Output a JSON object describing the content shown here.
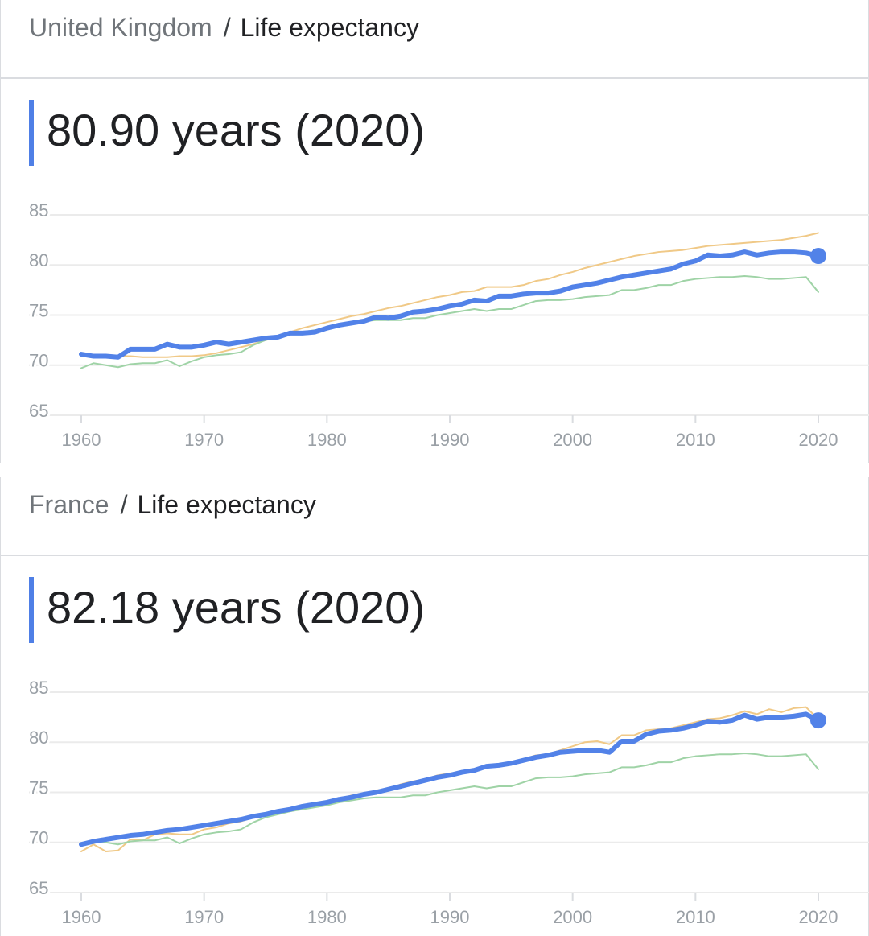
{
  "chart_data": [
    {
      "type": "line",
      "country": "United Kingdom",
      "separator": "/",
      "metric": "Life expectancy",
      "headline": "80.90 years (2020)",
      "x": [
        1960,
        1961,
        1962,
        1963,
        1964,
        1965,
        1966,
        1967,
        1968,
        1969,
        1970,
        1971,
        1972,
        1973,
        1974,
        1975,
        1976,
        1977,
        1978,
        1979,
        1980,
        1981,
        1982,
        1983,
        1984,
        1985,
        1986,
        1987,
        1988,
        1989,
        1990,
        1991,
        1992,
        1993,
        1994,
        1995,
        1996,
        1997,
        1998,
        1999,
        2000,
        2001,
        2002,
        2003,
        2004,
        2005,
        2006,
        2007,
        2008,
        2009,
        2010,
        2011,
        2012,
        2013,
        2014,
        2015,
        2016,
        2017,
        2018,
        2019,
        2020
      ],
      "xlim": [
        1960,
        2020
      ],
      "xticks": [
        1960,
        1970,
        1980,
        1990,
        2000,
        2010,
        2020
      ],
      "ylim": [
        65,
        85
      ],
      "yticks": [
        65,
        70,
        75,
        80,
        85
      ],
      "grid": true,
      "series": [
        {
          "color": "#f0c987",
          "values": [
            70.9,
            70.9,
            70.9,
            70.9,
            70.9,
            70.8,
            70.8,
            70.8,
            70.9,
            70.9,
            71.0,
            71.2,
            71.5,
            71.8,
            72.1,
            72.5,
            72.9,
            73.3,
            73.7,
            74.0,
            74.3,
            74.6,
            74.9,
            75.1,
            75.4,
            75.7,
            75.9,
            76.2,
            76.5,
            76.8,
            77.0,
            77.3,
            77.4,
            77.8,
            77.8,
            77.8,
            78.0,
            78.4,
            78.6,
            79.0,
            79.3,
            79.7,
            80.0,
            80.3,
            80.6,
            80.9,
            81.1,
            81.3,
            81.4,
            81.5,
            81.7,
            81.9,
            82.0,
            82.1,
            82.2,
            82.3,
            82.4,
            82.5,
            82.7,
            82.9,
            83.2
          ]
        },
        {
          "color": "#9fd3a6",
          "values": [
            69.7,
            70.2,
            70.0,
            69.8,
            70.1,
            70.2,
            70.2,
            70.5,
            69.9,
            70.4,
            70.8,
            71.0,
            71.1,
            71.3,
            72.0,
            72.5,
            72.8,
            73.1,
            73.3,
            73.5,
            73.7,
            74.0,
            74.2,
            74.4,
            74.5,
            74.5,
            74.5,
            74.7,
            74.7,
            75.0,
            75.2,
            75.4,
            75.6,
            75.4,
            75.6,
            75.6,
            76.0,
            76.4,
            76.5,
            76.5,
            76.6,
            76.8,
            76.9,
            77.0,
            77.5,
            77.5,
            77.7,
            78.0,
            78.0,
            78.4,
            78.6,
            78.7,
            78.8,
            78.8,
            78.9,
            78.8,
            78.6,
            78.6,
            78.7,
            78.8,
            77.3
          ]
        },
        {
          "color": "#5282e8",
          "values": [
            71.1,
            70.9,
            70.9,
            70.8,
            71.6,
            71.6,
            71.6,
            72.1,
            71.8,
            71.8,
            72.0,
            72.3,
            72.1,
            72.3,
            72.5,
            72.7,
            72.8,
            73.2,
            73.2,
            73.3,
            73.7,
            74.0,
            74.2,
            74.4,
            74.8,
            74.7,
            74.9,
            75.3,
            75.4,
            75.6,
            75.9,
            76.1,
            76.5,
            76.4,
            76.9,
            76.9,
            77.1,
            77.2,
            77.2,
            77.4,
            77.8,
            78.0,
            78.2,
            78.5,
            78.8,
            79.0,
            79.2,
            79.4,
            79.6,
            80.1,
            80.4,
            81.0,
            80.9,
            81.0,
            81.3,
            81.0,
            81.2,
            81.3,
            81.3,
            81.2,
            80.9
          ]
        }
      ]
    },
    {
      "type": "line",
      "country": "France",
      "separator": "/",
      "metric": "Life expectancy",
      "headline": "82.18 years (2020)",
      "x": [
        1960,
        1961,
        1962,
        1963,
        1964,
        1965,
        1966,
        1967,
        1968,
        1969,
        1970,
        1971,
        1972,
        1973,
        1974,
        1975,
        1976,
        1977,
        1978,
        1979,
        1980,
        1981,
        1982,
        1983,
        1984,
        1985,
        1986,
        1987,
        1988,
        1989,
        1990,
        1991,
        1992,
        1993,
        1994,
        1995,
        1996,
        1997,
        1998,
        1999,
        2000,
        2001,
        2002,
        2003,
        2004,
        2005,
        2006,
        2007,
        2008,
        2009,
        2010,
        2011,
        2012,
        2013,
        2014,
        2015,
        2016,
        2017,
        2018,
        2019,
        2020
      ],
      "xlim": [
        1960,
        2020
      ],
      "xticks": [
        1960,
        1970,
        1980,
        1990,
        2000,
        2010,
        2020
      ],
      "ylim": [
        65,
        85
      ],
      "yticks": [
        65,
        70,
        75,
        80,
        85
      ],
      "grid": true,
      "series": [
        {
          "color": "#f0c987",
          "values": [
            69.1,
            69.8,
            69.1,
            69.2,
            70.3,
            70.2,
            70.8,
            70.9,
            70.8,
            70.8,
            71.3,
            71.5,
            71.9,
            72.1,
            72.5,
            72.7,
            73.1,
            73.3,
            73.6,
            73.9,
            74.1,
            74.3,
            74.7,
            74.8,
            75.2,
            75.3,
            75.8,
            76.1,
            76.3,
            76.7,
            76.9,
            77.0,
            77.3,
            77.5,
            77.8,
            78.0,
            78.3,
            78.7,
            78.8,
            79.2,
            79.6,
            80.0,
            80.1,
            79.8,
            80.7,
            80.7,
            81.2,
            81.3,
            81.4,
            81.7,
            82.0,
            82.3,
            82.4,
            82.7,
            83.1,
            82.8,
            83.3,
            83.0,
            83.4,
            83.5,
            82.3
          ]
        },
        {
          "color": "#9fd3a6",
          "values": [
            69.7,
            70.2,
            70.0,
            69.8,
            70.1,
            70.2,
            70.2,
            70.5,
            69.9,
            70.4,
            70.8,
            71.0,
            71.1,
            71.3,
            72.0,
            72.5,
            72.8,
            73.1,
            73.3,
            73.5,
            73.7,
            74.0,
            74.2,
            74.4,
            74.5,
            74.5,
            74.5,
            74.7,
            74.7,
            75.0,
            75.2,
            75.4,
            75.6,
            75.4,
            75.6,
            75.6,
            76.0,
            76.4,
            76.5,
            76.5,
            76.6,
            76.8,
            76.9,
            77.0,
            77.5,
            77.5,
            77.7,
            78.0,
            78.0,
            78.4,
            78.6,
            78.7,
            78.8,
            78.8,
            78.9,
            78.8,
            78.6,
            78.6,
            78.7,
            78.8,
            77.3
          ]
        },
        {
          "color": "#5282e8",
          "values": [
            69.8,
            70.1,
            70.3,
            70.5,
            70.7,
            70.8,
            71.0,
            71.2,
            71.3,
            71.5,
            71.7,
            71.9,
            72.1,
            72.3,
            72.6,
            72.8,
            73.1,
            73.3,
            73.6,
            73.8,
            74.0,
            74.3,
            74.5,
            74.8,
            75.0,
            75.3,
            75.6,
            75.9,
            76.2,
            76.5,
            76.7,
            77.0,
            77.2,
            77.6,
            77.7,
            77.9,
            78.2,
            78.5,
            78.7,
            79.0,
            79.1,
            79.2,
            79.2,
            79.0,
            80.1,
            80.1,
            80.8,
            81.1,
            81.2,
            81.4,
            81.7,
            82.1,
            82.0,
            82.2,
            82.7,
            82.3,
            82.5,
            82.5,
            82.6,
            82.8,
            82.18
          ]
        }
      ]
    }
  ]
}
